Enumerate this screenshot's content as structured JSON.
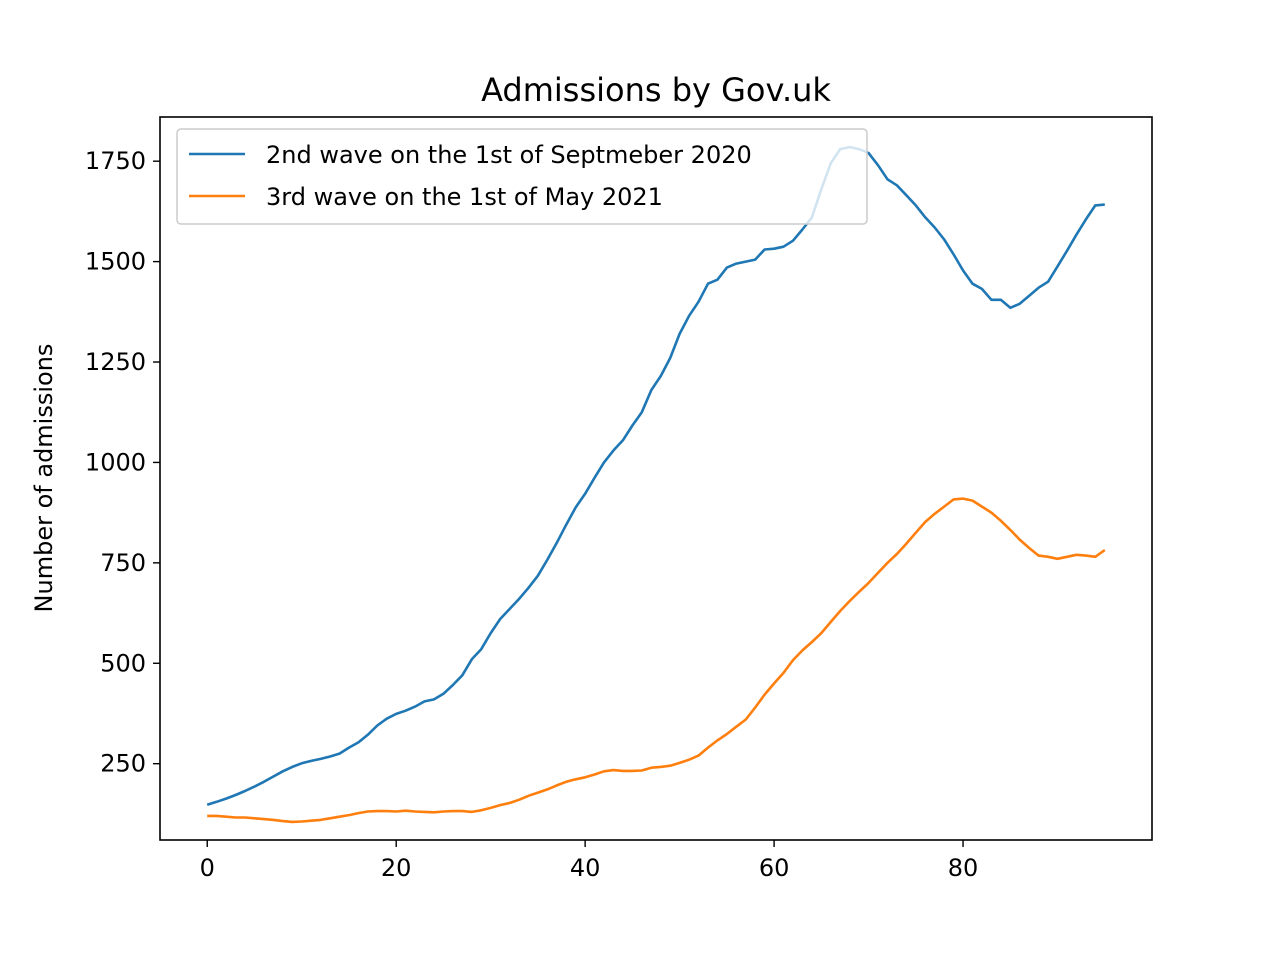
{
  "chart_data": {
    "type": "line",
    "title": "Admissions by Gov.uk",
    "xlabel": "",
    "ylabel": "Number of admissions",
    "xlim": [
      -5,
      100
    ],
    "ylim": [
      60,
      1860
    ],
    "xticks": [
      0,
      20,
      40,
      60,
      80
    ],
    "yticks": [
      250,
      500,
      750,
      1000,
      1250,
      1500,
      1750
    ],
    "grid": false,
    "legend_position": "upper left",
    "series": [
      {
        "name": "2nd wave on the 1st of Septmeber 2020",
        "color": "#1f77b4",
        "x": [
          0,
          1,
          2,
          3,
          4,
          5,
          6,
          7,
          8,
          9,
          10,
          11,
          12,
          13,
          14,
          15,
          16,
          17,
          18,
          19,
          20,
          21,
          22,
          23,
          24,
          25,
          26,
          27,
          28,
          29,
          30,
          31,
          32,
          33,
          34,
          35,
          36,
          37,
          38,
          39,
          40,
          41,
          42,
          43,
          44,
          45,
          46,
          47,
          48,
          49,
          50,
          51,
          52,
          53,
          54,
          55,
          56,
          57,
          58,
          59,
          60,
          61,
          62,
          63,
          64,
          65,
          66,
          67,
          68,
          69,
          70,
          71,
          72,
          73,
          74,
          75,
          76,
          77,
          78,
          79,
          80,
          81,
          82,
          83,
          84,
          85,
          86,
          87,
          88,
          89,
          90,
          91,
          92,
          93,
          94,
          95
        ],
        "values": [
          148,
          155,
          163,
          172,
          182,
          193,
          205,
          218,
          231,
          242,
          251,
          257,
          262,
          268,
          275,
          290,
          303,
          322,
          345,
          362,
          374,
          382,
          392,
          405,
          410,
          424,
          446,
          470,
          510,
          535,
          575,
          610,
          635,
          660,
          688,
          718,
          758,
          800,
          845,
          888,
          922,
          962,
          1000,
          1030,
          1055,
          1092,
          1125,
          1180,
          1215,
          1260,
          1320,
          1365,
          1400,
          1445,
          1455,
          1485,
          1495,
          1500,
          1505,
          1530,
          1532,
          1537,
          1552,
          1580,
          1610,
          1680,
          1745,
          1780,
          1785,
          1780,
          1770,
          1740,
          1705,
          1690,
          1665,
          1640,
          1610,
          1585,
          1555,
          1518,
          1478,
          1445,
          1432,
          1405,
          1405,
          1385,
          1395,
          1415,
          1435,
          1450,
          1488,
          1527,
          1567,
          1605,
          1640,
          1642
        ]
      },
      {
        "name": "3rd wave on the 1st of May 2021",
        "color": "#ff7f0e",
        "x": [
          0,
          1,
          2,
          3,
          4,
          5,
          6,
          7,
          8,
          9,
          10,
          11,
          12,
          13,
          14,
          15,
          16,
          17,
          18,
          19,
          20,
          21,
          22,
          23,
          24,
          25,
          26,
          27,
          28,
          29,
          30,
          31,
          32,
          33,
          34,
          35,
          36,
          37,
          38,
          39,
          40,
          41,
          42,
          43,
          44,
          45,
          46,
          47,
          48,
          49,
          50,
          51,
          52,
          53,
          54,
          55,
          56,
          57,
          58,
          59,
          60,
          61,
          62,
          63,
          64,
          65,
          66,
          67,
          68,
          69,
          70,
          71,
          72,
          73,
          74,
          75,
          76,
          77,
          78,
          79,
          80,
          81,
          82,
          83,
          84,
          85,
          86,
          87,
          88,
          89,
          90,
          91,
          92,
          93,
          94,
          95
        ],
        "values": [
          120,
          120,
          118,
          116,
          116,
          114,
          112,
          110,
          107,
          105,
          106,
          108,
          110,
          114,
          118,
          122,
          127,
          131,
          132,
          132,
          131,
          133,
          131,
          130,
          129,
          131,
          132,
          132,
          130,
          134,
          140,
          147,
          152,
          160,
          170,
          178,
          186,
          196,
          205,
          211,
          216,
          223,
          231,
          234,
          232,
          232,
          233,
          240,
          242,
          245,
          252,
          260,
          270,
          290,
          308,
          324,
          342,
          360,
          390,
          422,
          450,
          476,
          508,
          532,
          553,
          575,
          603,
          630,
          655,
          678,
          700,
          725,
          750,
          772,
          798,
          825,
          852,
          872,
          890,
          908,
          910,
          905,
          890,
          875,
          855,
          832,
          808,
          787,
          768,
          765,
          760,
          765,
          770,
          768,
          765,
          782
        ]
      }
    ]
  }
}
